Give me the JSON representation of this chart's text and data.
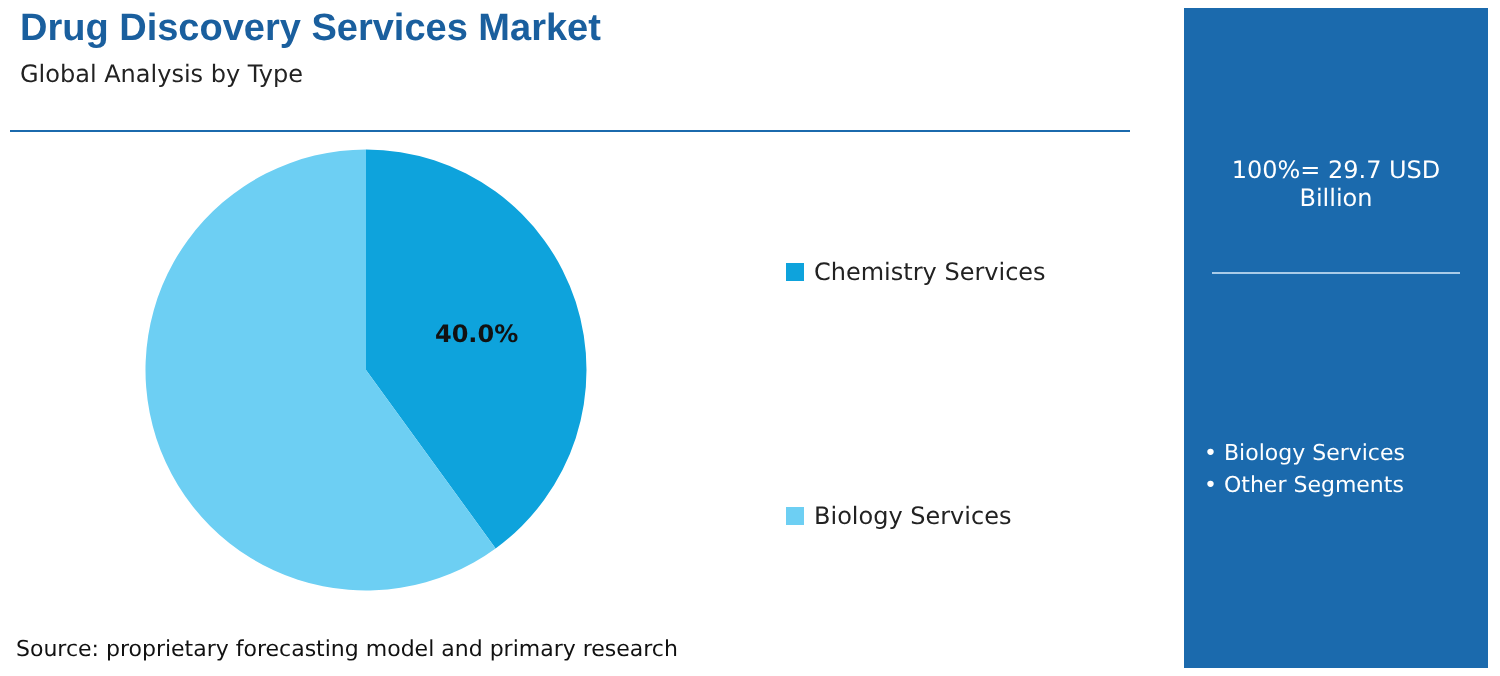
{
  "chart_data": {
    "type": "pie",
    "title": "Drug Discovery Services Market",
    "subtitle": "Global Analysis by Type",
    "categories": [
      "Chemistry Services",
      "Biology Services"
    ],
    "values": [
      40.0,
      60.0
    ],
    "colors": [
      "#0ea3dc",
      "#6dcff3"
    ],
    "value_labels": [
      "40.0%",
      null
    ],
    "legend": "right",
    "annotations": [
      "100%= 29.7 USD Billion",
      "• Biology Services",
      "• Other Segments",
      "Source: proprietary forecasting model and primary research"
    ]
  }
}
